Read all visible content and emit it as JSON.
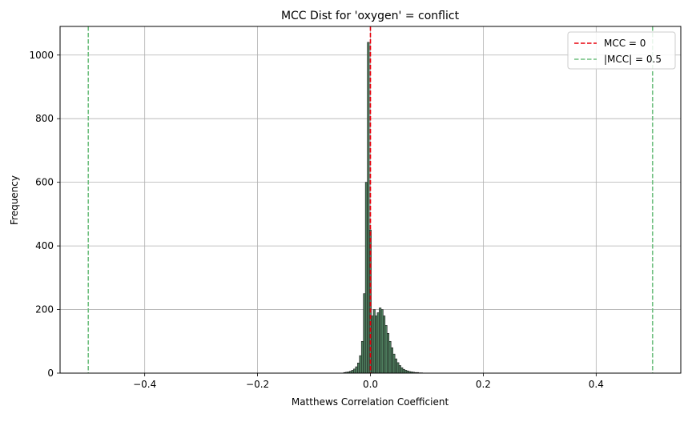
{
  "chart_data": {
    "type": "bar",
    "title": "MCC Dist for 'oxygen' = conflict",
    "xlabel": "Matthews Correlation Coefficient",
    "ylabel": "Frequency",
    "xlim": [
      -0.55,
      0.55
    ],
    "ylim": [
      0,
      1090
    ],
    "xticks": [
      -0.4,
      -0.2,
      0.0,
      0.2,
      0.4
    ],
    "xtick_labels": [
      "−0.4",
      "−0.2",
      "0.0",
      "0.2",
      "0.4"
    ],
    "yticks": [
      0,
      200,
      400,
      600,
      800,
      1000
    ],
    "ytick_labels": [
      "0",
      "200",
      "400",
      "600",
      "800",
      "1000"
    ],
    "grid": true,
    "bar_color": "#4f7f5f",
    "bar_edge_color": "#1a1a1a",
    "bin_width": 0.0035,
    "bins": [
      [
        -0.0475,
        2
      ],
      [
        -0.044,
        3
      ],
      [
        -0.0405,
        4
      ],
      [
        -0.037,
        6
      ],
      [
        -0.0335,
        9
      ],
      [
        -0.03,
        13
      ],
      [
        -0.0265,
        20
      ],
      [
        -0.023,
        32
      ],
      [
        -0.0195,
        55
      ],
      [
        -0.016,
        100
      ],
      [
        -0.0125,
        250
      ],
      [
        -0.009,
        600
      ],
      [
        -0.0055,
        1040
      ],
      [
        -0.002,
        450
      ],
      [
        0.0015,
        180
      ],
      [
        0.005,
        200
      ],
      [
        0.0085,
        180
      ],
      [
        0.012,
        190
      ],
      [
        0.0155,
        205
      ],
      [
        0.019,
        200
      ],
      [
        0.0225,
        180
      ],
      [
        0.026,
        150
      ],
      [
        0.0295,
        125
      ],
      [
        0.033,
        100
      ],
      [
        0.0365,
        80
      ],
      [
        0.04,
        60
      ],
      [
        0.0435,
        45
      ],
      [
        0.047,
        33
      ],
      [
        0.0505,
        24
      ],
      [
        0.054,
        17
      ],
      [
        0.0575,
        12
      ],
      [
        0.061,
        9
      ],
      [
        0.0645,
        7
      ],
      [
        0.068,
        5
      ],
      [
        0.0715,
        4
      ],
      [
        0.075,
        3
      ],
      [
        0.0785,
        2
      ],
      [
        0.082,
        2
      ],
      [
        0.0855,
        1
      ],
      [
        0.089,
        1
      ]
    ],
    "reference_lines": [
      {
        "name": "MCC = 0",
        "x": [
          0.0
        ],
        "color": "#e8000b",
        "style": "dashed"
      },
      {
        "name": "|MCC| = 0.5",
        "x": [
          -0.5,
          0.5
        ],
        "color": "#6fbf7f",
        "style": "dashed"
      }
    ],
    "legend_position": "top-right"
  }
}
